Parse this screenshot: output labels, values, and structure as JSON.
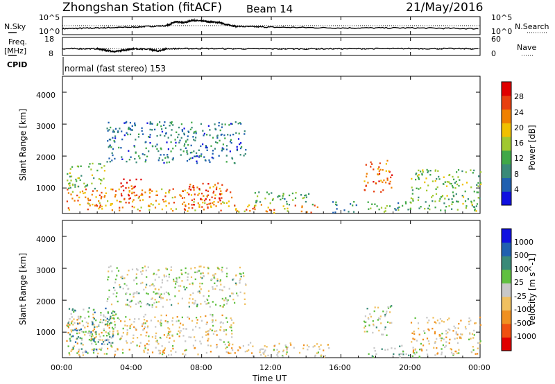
{
  "header": {
    "station_title": "Zhongshan Station (fitACF)",
    "beam": "Beam 14",
    "date": "21/May/2016"
  },
  "top_panels": {
    "nsky_label": "N.Sky",
    "nsky_ticks": [
      "10^5",
      "10^0"
    ],
    "nsearch_label": "N.Search",
    "nsearch_ticks": [
      "10^5",
      "10^0"
    ],
    "freq_label": "Freq.",
    "freq_unit": "[MHz]",
    "freq_ticks": [
      "18",
      "8"
    ],
    "nave_label": "Nave",
    "nave_ticks": [
      "60",
      "0"
    ],
    "cpid_label": "CPID",
    "cpid_text": "normal (fast stereo) 153"
  },
  "time_axis": {
    "label": "Time UT",
    "ticks": [
      "00:00",
      "04:00",
      "08:00",
      "12:00",
      "16:00",
      "20:00",
      "00:00"
    ]
  },
  "power_panel": {
    "ylabel": "Slant Range [km]",
    "yticks": [
      "1000",
      "2000",
      "3000",
      "4000"
    ],
    "colorbar_label": "Power [dB]",
    "colorbar_ticks": [
      "4",
      "8",
      "12",
      "16",
      "20",
      "24",
      "28"
    ],
    "colors": [
      "#1010e0",
      "#2060b0",
      "#3a8a78",
      "#40a848",
      "#a0c830",
      "#f0c000",
      "#f08000",
      "#e84010",
      "#e00000"
    ]
  },
  "velocity_panel": {
    "ylabel": "Slant Range [km]",
    "yticks": [
      "1000",
      "2000",
      "3000",
      "4000"
    ],
    "colorbar_label": "Velocity [m s^-1]",
    "colorbar_ticks": [
      "-1000",
      "-500",
      "-100",
      "-25",
      "25",
      "100",
      "500",
      "1000"
    ],
    "colors": [
      "#e00000",
      "#f05010",
      "#f09020",
      "#f0c060",
      "#c8c8c8",
      "#60c040",
      "#3a8a78",
      "#2060b0",
      "#1010e0"
    ]
  },
  "chart_data": [
    {
      "type": "line",
      "title": "N.Sky / N.Search",
      "x_unit": "hours UT",
      "xlim": [
        0,
        24
      ],
      "series": [
        {
          "name": "N.Sky",
          "x": [
            0,
            2,
            4,
            6,
            6.5,
            7,
            7.5,
            8,
            8.5,
            9,
            9.5,
            10,
            12,
            16,
            20,
            24
          ],
          "y": [
            0.3,
            0.35,
            0.4,
            0.5,
            0.75,
            0.7,
            0.85,
            0.8,
            0.75,
            0.7,
            0.55,
            0.45,
            0.4,
            0.35,
            0.35,
            0.3
          ]
        }
      ]
    },
    {
      "type": "line",
      "title": "Freq. / Nave",
      "x_unit": "hours UT",
      "xlim": [
        0,
        24
      ],
      "series": [
        {
          "name": "Freq.",
          "x": [
            0,
            2,
            2.5,
            3,
            3.5,
            4,
            5,
            5.5,
            6,
            8,
            12,
            16,
            20,
            24
          ],
          "y": [
            11.5,
            11.5,
            10.5,
            9.5,
            10.5,
            11.5,
            11.2,
            10.0,
            11.5,
            11.6,
            11.4,
            11.5,
            11.6,
            11.5
          ]
        }
      ]
    },
    {
      "type": "heatmap",
      "title": "Power [dB]",
      "xlim": [
        0,
        24
      ],
      "ylim": [
        200,
        4500
      ],
      "blobs": [
        {
          "t0": 0.2,
          "t1": 9.8,
          "r0": 300,
          "r1": 1000,
          "v": 22
        },
        {
          "t0": 3.3,
          "t1": 4.5,
          "r0": 700,
          "r1": 1300,
          "v": 27
        },
        {
          "t0": 6.8,
          "t1": 9.2,
          "r0": 500,
          "r1": 1200,
          "v": 26
        },
        {
          "t0": 0.2,
          "t1": 2.5,
          "r0": 1000,
          "r1": 1800,
          "v": 14
        },
        {
          "t0": 2.5,
          "t1": 10.5,
          "r0": 1800,
          "r1": 3100,
          "v": 8
        },
        {
          "t0": 9.5,
          "t1": 15.0,
          "r0": 200,
          "r1": 500,
          "v": 22
        },
        {
          "t0": 11.0,
          "t1": 14.5,
          "r0": 500,
          "r1": 900,
          "v": 12
        },
        {
          "t0": 15.5,
          "t1": 17.0,
          "r0": 200,
          "r1": 600,
          "v": 9
        },
        {
          "t0": 17.3,
          "t1": 18.9,
          "r0": 900,
          "r1": 1900,
          "v": 24
        },
        {
          "t0": 17.5,
          "t1": 20.0,
          "r0": 200,
          "r1": 600,
          "v": 12
        },
        {
          "t0": 20.0,
          "t1": 24.0,
          "r0": 300,
          "r1": 1600,
          "v": 14
        }
      ]
    },
    {
      "type": "heatmap",
      "title": "Velocity [m s^-1]",
      "xlim": [
        0,
        24
      ],
      "ylim": [
        200,
        4500
      ],
      "blobs": [
        {
          "t0": 0.2,
          "t1": 9.8,
          "r0": 300,
          "r1": 1600,
          "v": -150
        },
        {
          "t0": 0.2,
          "t1": 3.0,
          "r0": 300,
          "r1": 1800,
          "v": 400
        },
        {
          "t0": 2.5,
          "t1": 10.5,
          "r0": 1800,
          "r1": 3100,
          "v": 50
        },
        {
          "t0": 9.5,
          "t1": 15.5,
          "r0": 200,
          "r1": 700,
          "v": -150
        },
        {
          "t0": 17.3,
          "t1": 18.9,
          "r0": 900,
          "r1": 1900,
          "v": 60
        },
        {
          "t0": 17.5,
          "t1": 20.5,
          "r0": 200,
          "r1": 600,
          "v": 300
        },
        {
          "t0": 20.0,
          "t1": 24.0,
          "r0": 300,
          "r1": 1500,
          "v": -200
        }
      ]
    }
  ]
}
